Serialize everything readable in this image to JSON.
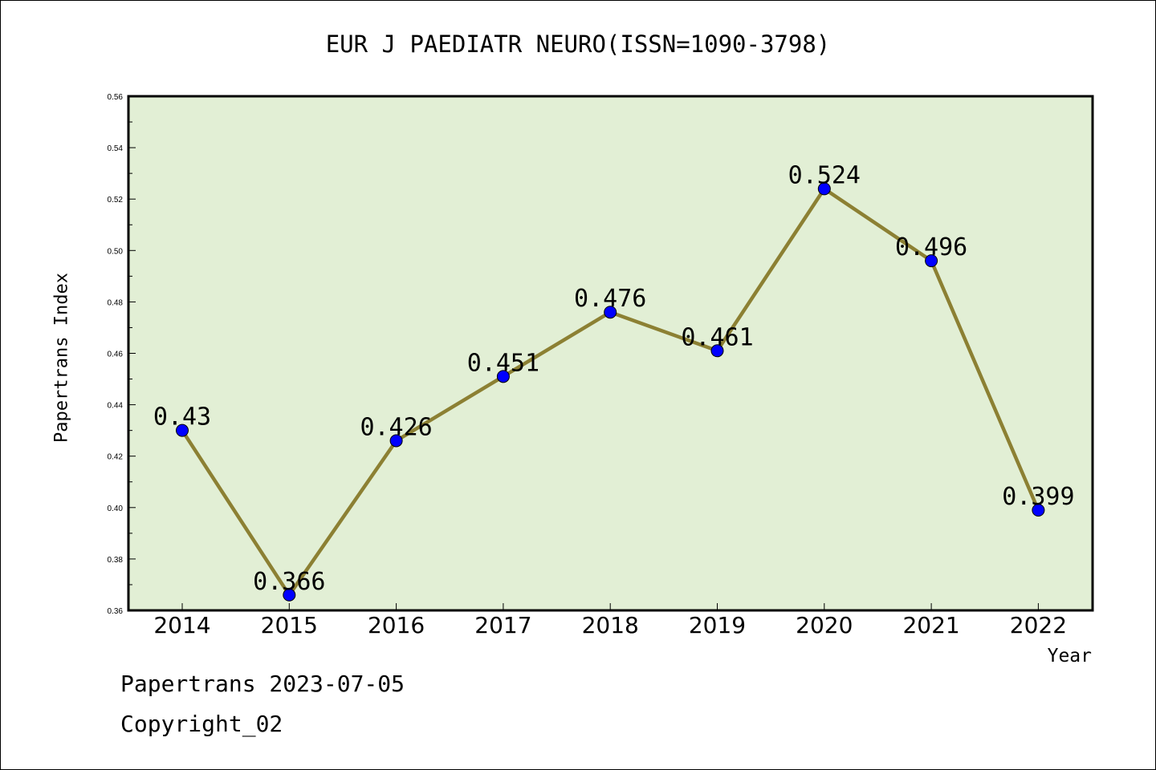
{
  "chart_data": {
    "type": "line",
    "title": "EUR J PAEDIATR NEURO(ISSN=1090-3798)",
    "xlabel": "Year",
    "ylabel": "Papertrans Index",
    "categories": [
      "2014",
      "2015",
      "2016",
      "2017",
      "2018",
      "2019",
      "2020",
      "2021",
      "2022"
    ],
    "series": [
      {
        "values": [
          0.43,
          0.366,
          0.426,
          0.451,
          0.476,
          0.461,
          0.524,
          0.496,
          0.399
        ],
        "data_labels": [
          "0.43",
          "0.366",
          "0.426",
          "0.451",
          "0.476",
          "0.461",
          "0.524",
          "0.496",
          "0.399"
        ]
      }
    ],
    "ylim": [
      0.36,
      0.56
    ],
    "yticks": [
      "0.36",
      "0.38",
      "0.40",
      "0.42",
      "0.44",
      "0.46",
      "0.48",
      "0.50",
      "0.52",
      "0.54",
      "0.56"
    ],
    "grid": false,
    "colors": {
      "plot_background": "#e2efd5",
      "line": "#8c8033",
      "marker": "#0000ff"
    }
  },
  "footer": {
    "line1": "Papertrans 2023-07-05",
    "line2": "Copyright_02"
  }
}
